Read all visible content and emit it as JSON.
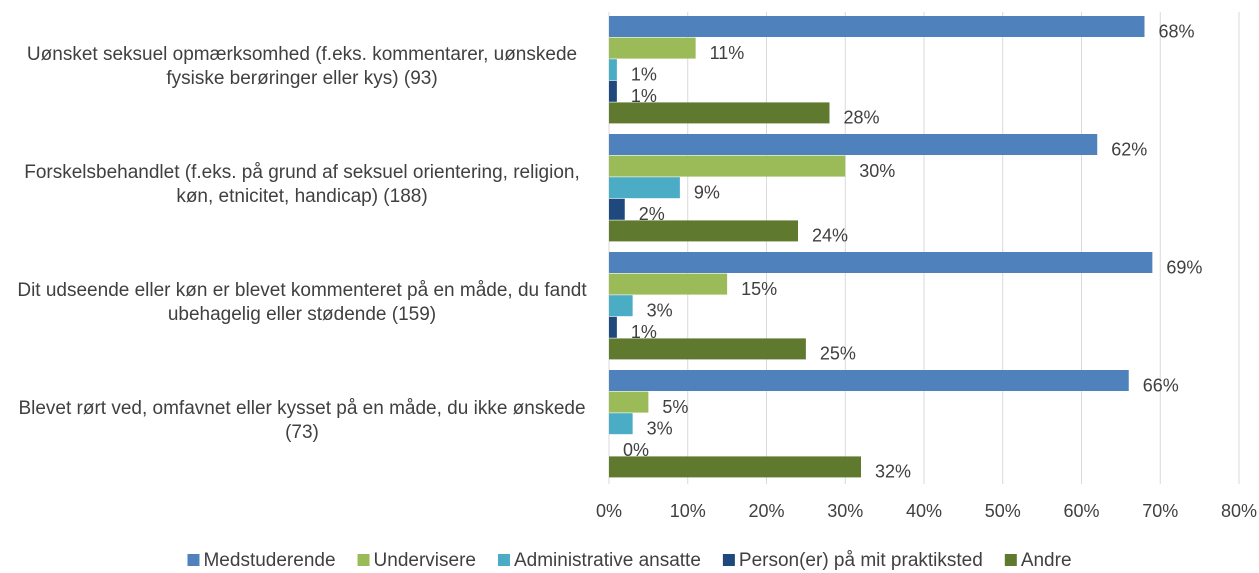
{
  "chart_data": {
    "type": "barh",
    "categories": [
      "Uønsket seksuel opmærksomhed (f.eks. kommentarer, uønskede fysiske berøringer eller kys) (93)",
      "Forskelsbehandlet (f.eks. på grund af seksuel orientering, religion, køn, etnicitet, handicap) (188)",
      "Dit udseende eller køn er blevet kommenteret på en måde, du fandt ubehagelig eller stødende (159)",
      "Blevet rørt ved, omfavnet eller kysset på en måde, du ikke ønskede (73)"
    ],
    "series": [
      {
        "name": "Medstuderende",
        "color": "#4f81bd",
        "values": [
          68,
          62,
          69,
          66
        ],
        "value_labels": [
          "68%",
          "62%",
          "69%",
          "66%"
        ]
      },
      {
        "name": "Undervisere",
        "color": "#9bbb59",
        "values": [
          11,
          30,
          15,
          5
        ],
        "value_labels": [
          "11%",
          "30%",
          "15%",
          "5%"
        ]
      },
      {
        "name": "Administrative ansatte",
        "color": "#4bacc6",
        "values": [
          1,
          9,
          3,
          3
        ],
        "value_labels": [
          "1%",
          "9%",
          "3%",
          "3%"
        ]
      },
      {
        "name": "Person(er) på mit praktiksted",
        "color": "#1f497d",
        "values": [
          1,
          2,
          1,
          0
        ],
        "value_labels": [
          "1%",
          "2%",
          "1%",
          "0%"
        ]
      },
      {
        "name": "Andre",
        "color": "#5f7a2f",
        "values": [
          28,
          24,
          25,
          32
        ],
        "value_labels": [
          "28%",
          "24%",
          "25%",
          "32%"
        ]
      }
    ],
    "xlim": [
      0,
      80
    ],
    "xticks": [
      {
        "value": 0,
        "label": "0%"
      },
      {
        "value": 10,
        "label": "10%"
      },
      {
        "value": 20,
        "label": "20%"
      },
      {
        "value": 30,
        "label": "30%"
      },
      {
        "value": 40,
        "label": "40%"
      },
      {
        "value": 50,
        "label": "50%"
      },
      {
        "value": 60,
        "label": "60%"
      },
      {
        "value": 70,
        "label": "70%"
      },
      {
        "value": 80,
        "label": "80%"
      }
    ],
    "grid": true,
    "legend": "bottom"
  }
}
